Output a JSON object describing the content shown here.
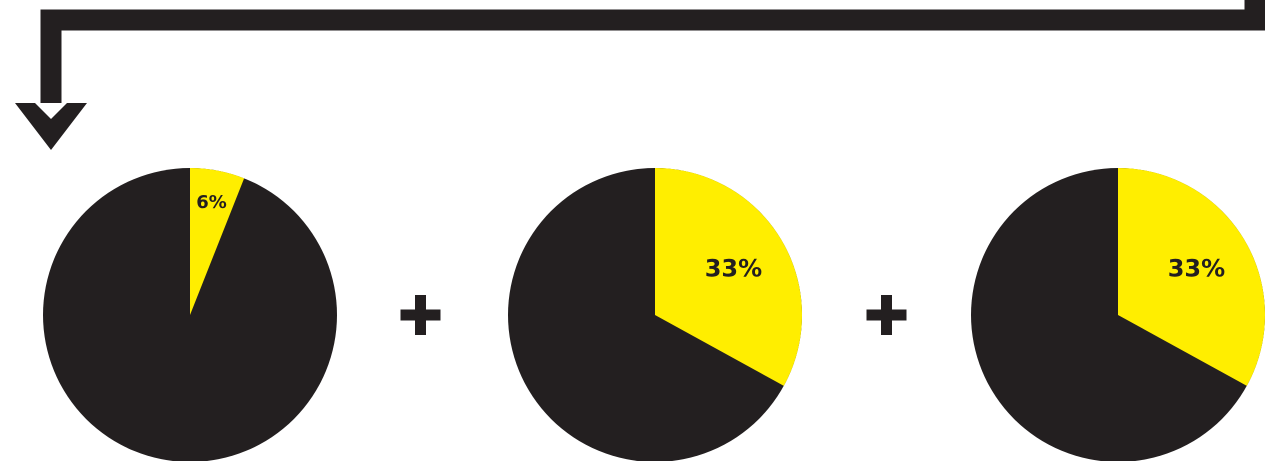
{
  "colors": {
    "dark": "#231f20",
    "accent": "#ffee00",
    "background": "#ffffff"
  },
  "icons": {
    "connector": "bent-arrow-down-icon",
    "operator": "plus-icon"
  },
  "chart_data": [
    {
      "type": "pie",
      "slices": [
        {
          "value": 6,
          "label": "6%",
          "color": "#ffee00"
        },
        {
          "value": 94,
          "color": "#231f20"
        }
      ]
    },
    {
      "type": "pie",
      "slices": [
        {
          "value": 33,
          "label": "33%",
          "color": "#ffee00"
        },
        {
          "value": 67,
          "color": "#231f20"
        }
      ]
    },
    {
      "type": "pie",
      "slices": [
        {
          "value": 33,
          "label": "33%",
          "color": "#ffee00"
        },
        {
          "value": 67,
          "color": "#231f20"
        }
      ]
    }
  ]
}
